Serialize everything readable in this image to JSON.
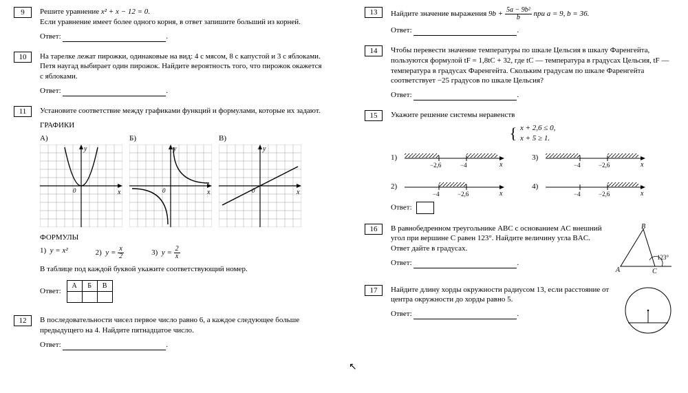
{
  "labels": {
    "answer": "Ответ:",
    "graphs_title": "ГРАФИКИ",
    "formulas_title": "ФОРМУЛЫ"
  },
  "col_left": {
    "p9": {
      "num": "9",
      "text_line1": "Решите уравнение ",
      "eq": "x² + x − 12 = 0.",
      "text_line2": "Если уравнение имеет более одного корня, в ответ запишите больший из корней."
    },
    "p10": {
      "num": "10",
      "text": "На тарелке лежат пирожки, одинаковые на вид: 4 с мясом, 8 с капустой и 3 с яблоками. Петя наугад выбирает один пирожок. Найдите вероятность того, что пирожок окажется с яблоками."
    },
    "p11": {
      "num": "11",
      "text": "Установите соответствие между графиками функций и формулами, которые их задают.",
      "graph_labels": [
        "А)",
        "Б)",
        "В)"
      ],
      "graphs": {
        "grid_color": "#606060",
        "axis_color": "#000000",
        "curve_color": "#000000",
        "size": 120,
        "cells": 10
      },
      "formulas": {
        "f1_label": "1)",
        "f1_math": "y = x²",
        "f2_label": "2)",
        "f2_num": "x",
        "f2_den": "2",
        "f3_label": "3)",
        "f3_num": "2",
        "f3_den": "x"
      },
      "table_note": "В таблице под каждой буквой укажите соответствующий номер.",
      "table_headers": [
        "А",
        "Б",
        "В"
      ]
    },
    "p12": {
      "num": "12",
      "text": "В последовательности чисел первое число равно 6, а каждое следующее больше предыдущего на 4. Найдите пятнадцатое число."
    }
  },
  "col_right": {
    "p13": {
      "num": "13",
      "text_pre": "Найдите значение выражения ",
      "expr_main": "9b + ",
      "frac_num": "5a − 9b²",
      "frac_den": "b",
      "text_post": " при a = 9, b = 36."
    },
    "p14": {
      "num": "14",
      "text": "Чтобы перевести значение температуры по шкале Цельсия в шкалу Фаренгейта, пользуются формулой tF = 1,8tC + 32, где tC — температура в градусах Цельсия, tF — температура в градусах Фаренгейта. Скольким градусам по шкале Фаренгейта соответствует −25 градусов по шкале Цельсия?"
    },
    "p15": {
      "num": "15",
      "text": "Укажите решение системы неравенств",
      "system_line1": "x + 2,6 ≤ 0,",
      "system_line2": "x + 5 ≥ 1.",
      "option_labels": [
        "1)",
        "2)",
        "3)",
        "4)"
      ],
      "options": [
        {
          "ticks": [
            "−2,6",
            "−4"
          ],
          "hatch_right": true,
          "hatch_left": false
        },
        {
          "ticks": [
            "−4",
            "−2,6"
          ],
          "hatch_mid": true
        },
        {
          "ticks": [
            "−4",
            "−2,6"
          ],
          "hatch_left": true,
          "hatch_right": true
        },
        {
          "ticks": [
            "−4",
            "−2,6"
          ],
          "hatch_right_only": true
        }
      ],
      "axis_color": "#000000",
      "hatch_color": "#000000"
    },
    "p16": {
      "num": "16",
      "text": "В равнобедренном треугольнике ABC с основанием AC внешний угол при вершине C равен 123°. Найдите величину угла BAC. Ответ дайте в градусах.",
      "labels": {
        "A": "A",
        "B": "B",
        "C": "C",
        "angle": "123°"
      },
      "stroke": "#000000"
    },
    "p17": {
      "num": "17",
      "text": "Найдите длину хорды окружности радиусом 13, если расстояние от центра окружности до хорды равно 5.",
      "stroke": "#000000"
    }
  }
}
